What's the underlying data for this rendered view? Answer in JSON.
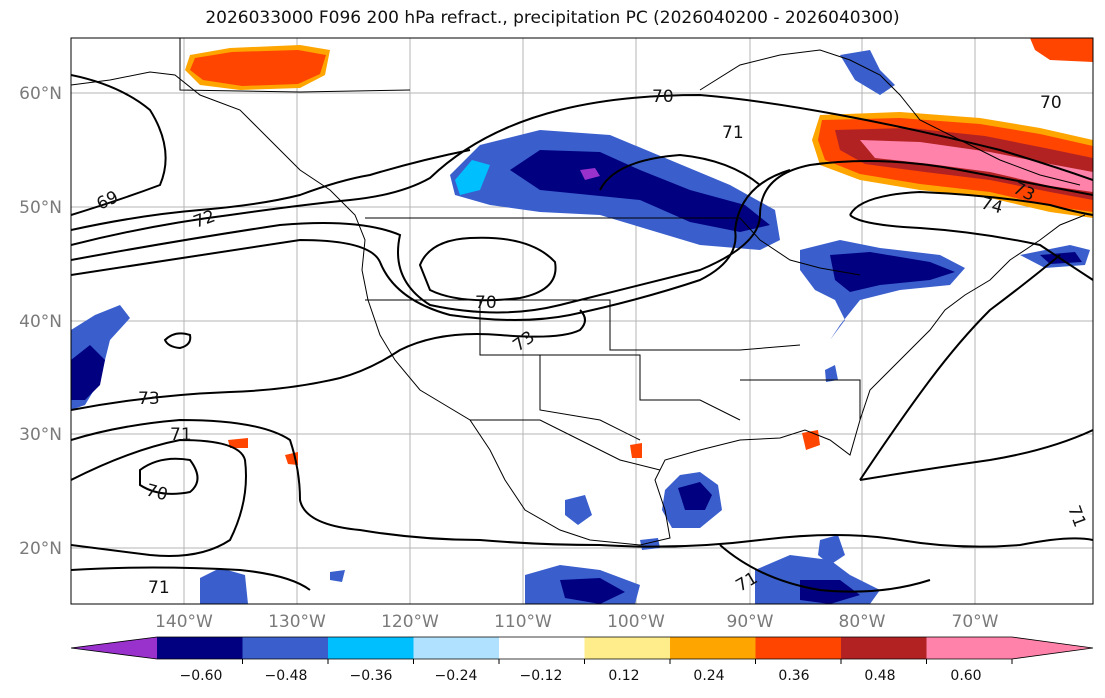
{
  "title": "2026033000 F096 200 hPa refract., precipitation PC (2026040200 - 2026040300)",
  "lat_labels": [
    "60°N",
    "50°N",
    "40°N",
    "30°N",
    "20°N"
  ],
  "lon_labels": [
    "140°W",
    "130°W",
    "120°W",
    "110°W",
    "100°W",
    "90°W",
    "80°W",
    "70°W"
  ],
  "colorbar": {
    "colors": [
      "#9932cc",
      "#000080",
      "#3a5fcd",
      "#00bfff",
      "#b0e2ff",
      "#ffffff",
      "#ffec8b",
      "#ffa500",
      "#ff4500",
      "#b22222",
      "#ff82ab"
    ],
    "ticks": [
      "−0.60",
      "−0.48",
      "−0.36",
      "−0.24",
      "−0.12",
      "0.12",
      "0.24",
      "0.36",
      "0.48",
      "0.60"
    ]
  },
  "contour_labels": [
    "70",
    "71",
    "69",
    "72",
    "70",
    "73",
    "73",
    "71",
    "70",
    "71",
    "71",
    "73",
    "74",
    "70",
    "71"
  ]
}
